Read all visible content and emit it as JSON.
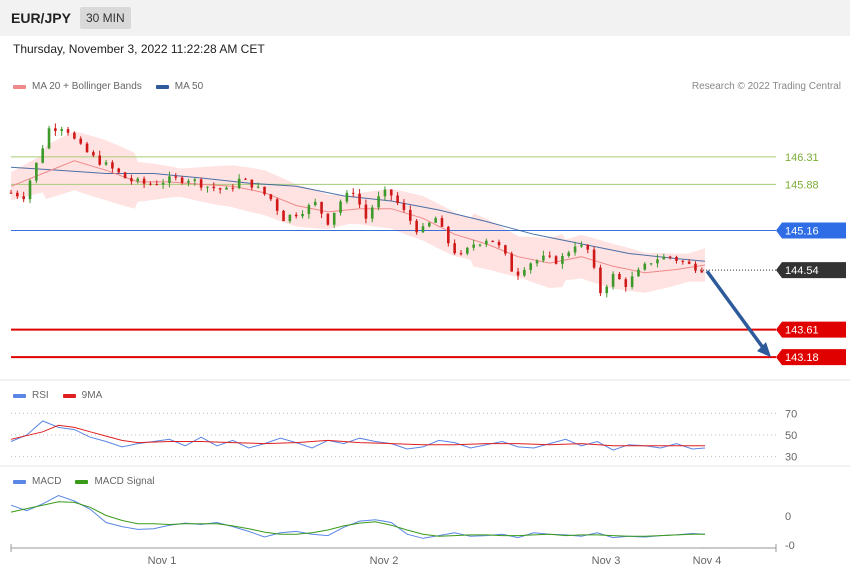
{
  "header": {
    "pair": "EUR/JPY",
    "timeframe": "30 MIN"
  },
  "timestamp": "Thursday, November 3, 2022 11:22:28 AM CET",
  "credit": "Research © 2022 Trading Central",
  "legend_main": [
    {
      "label": "MA 20 + Bollinger Bands",
      "color": "#f08a8a"
    },
    {
      "label": "MA 50",
      "color": "#2d5a9a"
    }
  ],
  "legend_rsi": [
    {
      "label": "RSI",
      "color": "#5b86e5"
    },
    {
      "label": "9MA",
      "color": "#e02020"
    }
  ],
  "legend_macd": [
    {
      "label": "MACD",
      "color": "#5b86e5"
    },
    {
      "label": "MACD Signal",
      "color": "#3a9a1a"
    }
  ],
  "colors": {
    "up": "#3d9a2a",
    "down": "#d01818",
    "bb_fill": "#ffd8d8",
    "ma20": "#f08a8a",
    "ma50": "#2d5a9a"
  },
  "chart_data": [
    {
      "type": "candlestick",
      "title": "EUR/JPY 30 MIN",
      "x_ticks": [
        "Nov 1",
        "Nov 2",
        "Nov 3",
        "Nov 4"
      ],
      "ylim": [
        142.9,
        147.2
      ],
      "levels": [
        {
          "label": "146.31",
          "value": 146.31,
          "style": "thin",
          "color": "#a6cc78",
          "text_color": "#7cae35",
          "badge": false
        },
        {
          "label": "145.88",
          "value": 145.88,
          "style": "thin",
          "color": "#a6cc78",
          "text_color": "#7cae35",
          "badge": false
        },
        {
          "label": "145.16",
          "value": 145.16,
          "style": "thin",
          "color": "#3a6fd8",
          "text_color": "#ffffff",
          "badge": true,
          "badge_color": "#2f6de6"
        },
        {
          "label": "144.54",
          "value": 144.54,
          "style": "dotted",
          "color": "#333333",
          "text_color": "#ffffff",
          "badge": true,
          "badge_color": "#333333"
        },
        {
          "label": "143.61",
          "value": 143.61,
          "style": "thick",
          "color": "#e00000",
          "text_color": "#ffffff",
          "badge": true,
          "badge_color": "#e00000"
        },
        {
          "label": "143.18",
          "value": 143.18,
          "style": "thick",
          "color": "#e00000",
          "text_color": "#ffffff",
          "badge": true,
          "badge_color": "#e00000"
        }
      ],
      "arrow": {
        "from_value": 144.54,
        "to_value": 143.18,
        "color": "#2d5a9a"
      },
      "price_path": [
        [
          0,
          145.75
        ],
        [
          4,
          145.7
        ],
        [
          8,
          146.2
        ],
        [
          12,
          146.75
        ],
        [
          17,
          146.8
        ],
        [
          21,
          146.5
        ],
        [
          26,
          146.3
        ],
        [
          31,
          146.15
        ],
        [
          37,
          145.95
        ],
        [
          43,
          145.88
        ],
        [
          50,
          145.95
        ],
        [
          56,
          145.97
        ],
        [
          62,
          145.85
        ],
        [
          68,
          145.78
        ],
        [
          72,
          145.95
        ],
        [
          76,
          145.88
        ],
        [
          82,
          145.65
        ],
        [
          86,
          145.35
        ],
        [
          91,
          145.45
        ],
        [
          96,
          145.58
        ],
        [
          100,
          145.3
        ],
        [
          104,
          145.62
        ],
        [
          108,
          145.78
        ],
        [
          112,
          145.35
        ],
        [
          115,
          145.62
        ],
        [
          119,
          145.78
        ],
        [
          124,
          145.45
        ],
        [
          129,
          145.12
        ],
        [
          134,
          145.35
        ],
        [
          139,
          144.88
        ],
        [
          142,
          144.75
        ],
        [
          146,
          144.95
        ],
        [
          151,
          145.05
        ],
        [
          155,
          144.85
        ],
        [
          159,
          144.45
        ],
        [
          163,
          144.65
        ],
        [
          168,
          144.72
        ],
        [
          173,
          144.68
        ],
        [
          178,
          144.95
        ],
        [
          182,
          144.85
        ],
        [
          186,
          144.2
        ],
        [
          190,
          144.45
        ],
        [
          194,
          144.32
        ],
        [
          199,
          144.55
        ],
        [
          203,
          144.72
        ],
        [
          208,
          144.75
        ],
        [
          214,
          144.62
        ],
        [
          219,
          144.55
        ]
      ],
      "ma20": [
        [
          0,
          145.85
        ],
        [
          10,
          146.05
        ],
        [
          20,
          146.25
        ],
        [
          30,
          146.1
        ],
        [
          40,
          145.92
        ],
        [
          50,
          145.92
        ],
        [
          60,
          145.88
        ],
        [
          70,
          145.85
        ],
        [
          80,
          145.75
        ],
        [
          90,
          145.55
        ],
        [
          100,
          145.45
        ],
        [
          110,
          145.5
        ],
        [
          120,
          145.5
        ],
        [
          130,
          145.35
        ],
        [
          140,
          145.1
        ],
        [
          150,
          144.95
        ],
        [
          160,
          144.75
        ],
        [
          170,
          144.65
        ],
        [
          180,
          144.75
        ],
        [
          190,
          144.6
        ],
        [
          200,
          144.5
        ],
        [
          210,
          144.55
        ],
        [
          219,
          144.62
        ]
      ],
      "ma50": [
        [
          0,
          146.15
        ],
        [
          15,
          146.1
        ],
        [
          30,
          146.05
        ],
        [
          45,
          146.05
        ],
        [
          60,
          145.98
        ],
        [
          75,
          145.9
        ],
        [
          90,
          145.85
        ],
        [
          105,
          145.7
        ],
        [
          120,
          145.62
        ],
        [
          135,
          145.48
        ],
        [
          150,
          145.3
        ],
        [
          165,
          145.1
        ],
        [
          180,
          144.95
        ],
        [
          195,
          144.8
        ],
        [
          210,
          144.72
        ],
        [
          219,
          144.68
        ]
      ]
    },
    {
      "type": "line",
      "title": "RSI",
      "ylim": [
        25,
        75
      ],
      "y_ticks": [
        70,
        50,
        30
      ],
      "series": [
        {
          "name": "RSI",
          "color": "#5b86e5",
          "values": [
            [
              0,
              44
            ],
            [
              5,
              50
            ],
            [
              10,
              63
            ],
            [
              15,
              57
            ],
            [
              20,
              55
            ],
            [
              25,
              48
            ],
            [
              30,
              44
            ],
            [
              35,
              39
            ],
            [
              40,
              42
            ],
            [
              45,
              44
            ],
            [
              50,
              46
            ],
            [
              55,
              40
            ],
            [
              60,
              48
            ],
            [
              65,
              40
            ],
            [
              70,
              45
            ],
            [
              75,
              38
            ],
            [
              80,
              42
            ],
            [
              85,
              47
            ],
            [
              90,
              43
            ],
            [
              95,
              38
            ],
            [
              100,
              45
            ],
            [
              105,
              42
            ],
            [
              110,
              47
            ],
            [
              115,
              44
            ],
            [
              120,
              42
            ],
            [
              125,
              37
            ],
            [
              130,
              39
            ],
            [
              135,
              45
            ],
            [
              140,
              43
            ],
            [
              145,
              38
            ],
            [
              150,
              41
            ],
            [
              155,
              44
            ],
            [
              160,
              39
            ],
            [
              165,
              38
            ],
            [
              170,
              42
            ],
            [
              175,
              46
            ],
            [
              180,
              40
            ],
            [
              185,
              44
            ],
            [
              190,
              36
            ],
            [
              195,
              41
            ],
            [
              200,
              40
            ],
            [
              205,
              38
            ],
            [
              210,
              42
            ],
            [
              215,
              37
            ],
            [
              219,
              38
            ]
          ]
        },
        {
          "name": "9MA",
          "color": "#e02020",
          "values": [
            [
              0,
              46
            ],
            [
              10,
              53
            ],
            [
              15,
              59
            ],
            [
              20,
              57
            ],
            [
              25,
              53
            ],
            [
              30,
              49
            ],
            [
              35,
              45
            ],
            [
              40,
              43
            ],
            [
              50,
              44
            ],
            [
              60,
              44
            ],
            [
              70,
              43
            ],
            [
              80,
              42
            ],
            [
              90,
              43
            ],
            [
              100,
              45
            ],
            [
              110,
              43
            ],
            [
              120,
              42
            ],
            [
              130,
              41
            ],
            [
              140,
              41
            ],
            [
              150,
              42
            ],
            [
              160,
              42
            ],
            [
              170,
              41
            ],
            [
              180,
              42
            ],
            [
              190,
              40
            ],
            [
              200,
              40
            ],
            [
              210,
              40
            ],
            [
              219,
              40
            ]
          ]
        }
      ]
    },
    {
      "type": "line",
      "title": "MACD",
      "ylim": [
        -0.32,
        0.52
      ],
      "y_ticks": [
        0,
        0
      ],
      "series": [
        {
          "name": "MACD",
          "color": "#5b86e5",
          "values": [
            [
              0,
              0.3
            ],
            [
              5,
              0.22
            ],
            [
              10,
              0.32
            ],
            [
              15,
              0.44
            ],
            [
              20,
              0.36
            ],
            [
              25,
              0.24
            ],
            [
              30,
              0.05
            ],
            [
              35,
              -0.01
            ],
            [
              40,
              -0.05
            ],
            [
              45,
              -0.04
            ],
            [
              50,
              0.01
            ],
            [
              55,
              0.04
            ],
            [
              60,
              0.02
            ],
            [
              65,
              0.05
            ],
            [
              70,
              -0.01
            ],
            [
              75,
              -0.08
            ],
            [
              80,
              -0.16
            ],
            [
              85,
              -0.1
            ],
            [
              90,
              -0.08
            ],
            [
              95,
              -0.12
            ],
            [
              100,
              -0.14
            ],
            [
              105,
              -0.02
            ],
            [
              110,
              0.07
            ],
            [
              115,
              0.09
            ],
            [
              120,
              0.05
            ],
            [
              125,
              -0.12
            ],
            [
              130,
              -0.18
            ],
            [
              135,
              -0.14
            ],
            [
              140,
              -0.1
            ],
            [
              145,
              -0.15
            ],
            [
              150,
              -0.14
            ],
            [
              155,
              -0.12
            ],
            [
              160,
              -0.17
            ],
            [
              165,
              -0.1
            ],
            [
              170,
              -0.12
            ],
            [
              175,
              -0.13
            ],
            [
              180,
              -0.15
            ],
            [
              185,
              -0.1
            ],
            [
              190,
              -0.17
            ],
            [
              195,
              -0.15
            ],
            [
              200,
              -0.16
            ],
            [
              205,
              -0.14
            ],
            [
              210,
              -0.13
            ],
            [
              215,
              -0.11
            ],
            [
              219,
              -0.12
            ]
          ]
        },
        {
          "name": "MACD Signal",
          "color": "#3a9a1a",
          "values": [
            [
              0,
              0.2
            ],
            [
              5,
              0.25
            ],
            [
              10,
              0.3
            ],
            [
              15,
              0.35
            ],
            [
              20,
              0.34
            ],
            [
              25,
              0.27
            ],
            [
              30,
              0.15
            ],
            [
              35,
              0.08
            ],
            [
              40,
              0.03
            ],
            [
              45,
              0.03
            ],
            [
              50,
              0.02
            ],
            [
              55,
              0.03
            ],
            [
              60,
              0.03
            ],
            [
              65,
              0.03
            ],
            [
              70,
              0.0
            ],
            [
              75,
              -0.04
            ],
            [
              80,
              -0.09
            ],
            [
              85,
              -0.12
            ],
            [
              90,
              -0.12
            ],
            [
              95,
              -0.1
            ],
            [
              100,
              -0.06
            ],
            [
              105,
              0.0
            ],
            [
              110,
              0.04
            ],
            [
              115,
              0.06
            ],
            [
              120,
              0.01
            ],
            [
              125,
              -0.06
            ],
            [
              130,
              -0.12
            ],
            [
              135,
              -0.15
            ],
            [
              140,
              -0.14
            ],
            [
              145,
              -0.13
            ],
            [
              150,
              -0.13
            ],
            [
              155,
              -0.14
            ],
            [
              160,
              -0.14
            ],
            [
              165,
              -0.13
            ],
            [
              170,
              -0.12
            ],
            [
              175,
              -0.14
            ],
            [
              180,
              -0.13
            ],
            [
              185,
              -0.13
            ],
            [
              190,
              -0.14
            ],
            [
              195,
              -0.15
            ],
            [
              200,
              -0.15
            ],
            [
              205,
              -0.14
            ],
            [
              210,
              -0.13
            ],
            [
              215,
              -0.12
            ],
            [
              219,
              -0.12
            ]
          ]
        }
      ]
    }
  ]
}
